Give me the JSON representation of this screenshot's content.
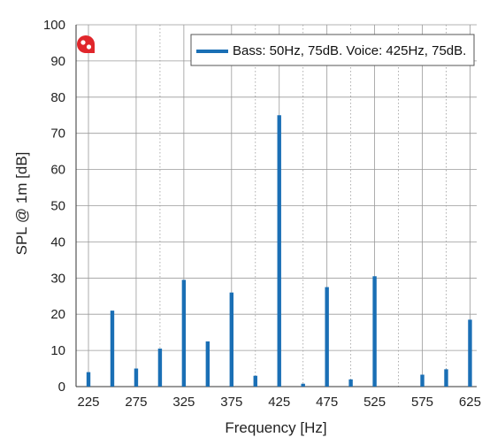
{
  "chart_data": {
    "type": "bar",
    "xlabel": "Frequency [Hz]",
    "ylabel": "SPL @ 1m [dB]",
    "ylim": [
      0,
      100
    ],
    "xlim": [
      212,
      632
    ],
    "x_ticks": [
      225,
      275,
      325,
      375,
      425,
      475,
      525,
      575,
      625
    ],
    "y_ticks": [
      0,
      10,
      20,
      30,
      40,
      50,
      60,
      70,
      80,
      90,
      100
    ],
    "minor_grid_x": [
      300,
      400,
      450,
      500,
      550,
      600
    ],
    "grid": true,
    "legend_position": "top-right",
    "series": [
      {
        "name": "Bass: 50Hz, 75dB. Voice: 425Hz, 75dB.",
        "color": "#1a6fb5",
        "x": [
          225,
          250,
          275,
          300,
          325,
          350,
          375,
          400,
          425,
          450,
          475,
          500,
          525,
          575,
          600,
          625
        ],
        "values": [
          4,
          21,
          5,
          10.5,
          29.5,
          12.5,
          26,
          3,
          75,
          0.8,
          27.5,
          2,
          30.5,
          3.3,
          4.8,
          18.5
        ]
      }
    ]
  },
  "logo": {
    "icon": "record-logo-icon",
    "color": "#e0262b"
  }
}
